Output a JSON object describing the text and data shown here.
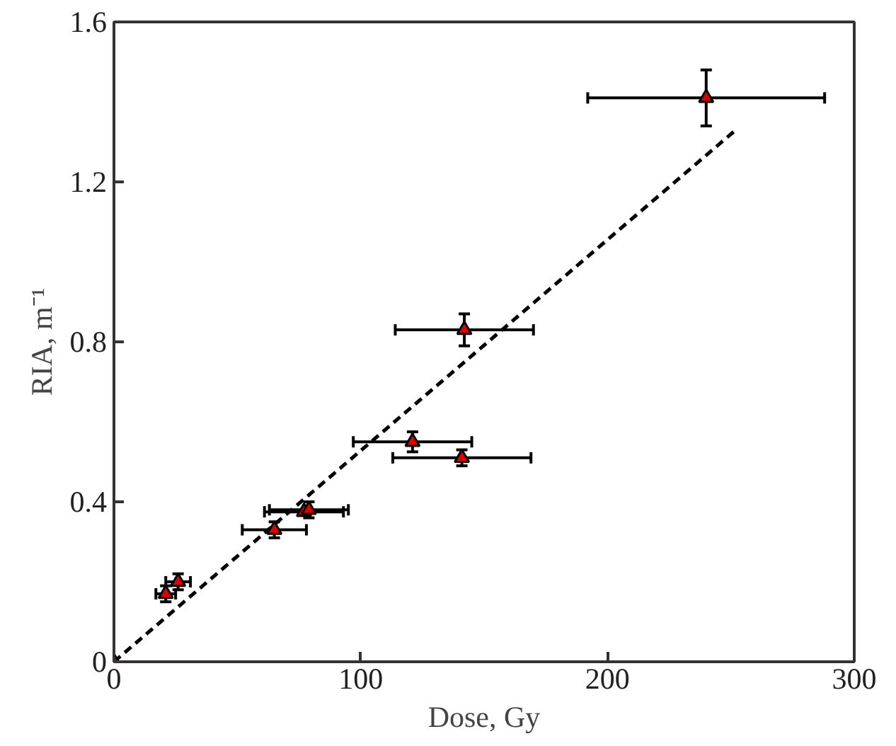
{
  "chart_data": {
    "type": "scatter",
    "xlabel": "Dose, Gy",
    "ylabel": "RIA, m⁻¹",
    "xlim": [
      0,
      300
    ],
    "ylim": [
      0,
      1.6
    ],
    "xticks": [
      0,
      100,
      200,
      300
    ],
    "yticks": [
      0,
      0.4,
      0.8,
      1.2,
      1.6
    ],
    "grid": false,
    "marker": "triangle",
    "series": [
      {
        "color": "#e00000",
        "x": [
          0,
          21,
          26,
          65,
          77,
          79,
          121,
          141,
          142,
          240
        ],
        "values": [
          0,
          0.17,
          0.2,
          0.33,
          0.375,
          0.38,
          0.55,
          0.51,
          0.83,
          1.41
        ],
        "xerrors": [
          null,
          4,
          5,
          13,
          16,
          16,
          24,
          28,
          28,
          48
        ],
        "errors": [
          null,
          0.02,
          0.02,
          0.02,
          null,
          0.02,
          0.025,
          0.02,
          0.04,
          0.07
        ]
      },
      {
        "type": "line",
        "color": "#000000",
        "line_style": "dashed",
        "marker": "none",
        "x": [
          0,
          252
        ],
        "values": [
          0,
          1.33
        ]
      }
    ]
  }
}
